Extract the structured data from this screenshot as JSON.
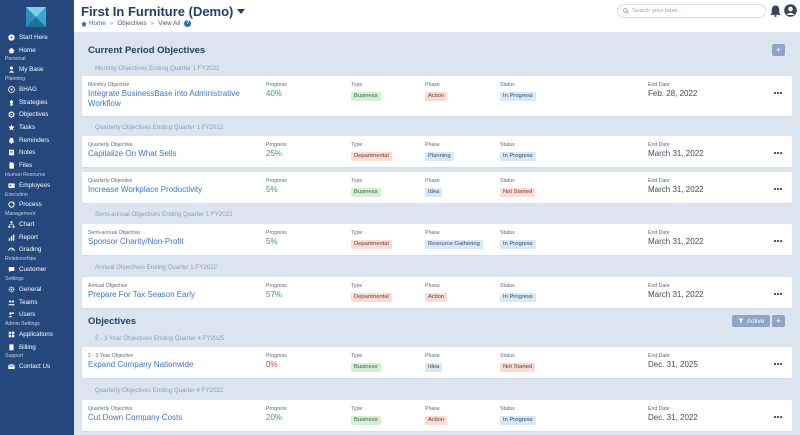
{
  "app": {
    "title": "First In Furniture (Demo)"
  },
  "breadcrumb": {
    "home": "Home",
    "objectives": "Objectives",
    "view_all": "View All",
    "help": "?"
  },
  "search": {
    "placeholder": "Search your base..."
  },
  "sidebar": {
    "start_here": "Start Here",
    "home": "Home",
    "personal": "Personal",
    "my_base": "My Base",
    "planning": "Planning",
    "bhag": "BHAG",
    "strategies": "Strategies",
    "objectives": "Objectives",
    "tasks": "Tasks",
    "reminders": "Reminders",
    "notes": "Notes",
    "files": "Files",
    "human_resource": "Human Resource",
    "employees": "Employees",
    "execution": "Execution",
    "process": "Process",
    "management": "Management",
    "chart": "Chart",
    "report": "Report",
    "grading": "Grading",
    "relationships": "Relationships",
    "customer": "Customer",
    "settings": "Settings",
    "general": "General",
    "teams": "Teams",
    "users": "Users",
    "admin_settings": "Admin Settings",
    "applications": "Applications",
    "billing": "Billing",
    "support": "Support",
    "contact_us": "Contact Us"
  },
  "labels": {
    "progress": "Progress",
    "type": "Type",
    "phase": "Phase",
    "status": "Status",
    "end_date": "End Date"
  },
  "current_period": {
    "title": "Current Period Objectives",
    "add": "+",
    "groups": [
      "Monthly Objectives Ending Quarter 1 FY2022",
      "Quarterly Objectives Ending Quarter 1 FY2022",
      "Semi-annual Objectives Ending Quarter 1 FY2022",
      "Annual Objectives Ending Quarter 1 FY2022"
    ],
    "items": [
      {
        "kind": "Monthly Objective",
        "name": "Integrate BusinessBase into Administrative Workflow",
        "progress": "40%",
        "type": "Business",
        "phase": "Action",
        "status": "In Progress",
        "end_date": "Feb. 28, 2022"
      },
      {
        "kind": "Quarterly Objective",
        "name": "Capitalize On What Sells",
        "progress": "25%",
        "type": "Departmental",
        "phase": "Planning",
        "status": "In Progress",
        "end_date": "March 31, 2022"
      },
      {
        "kind": "Quarterly Objective",
        "name": "Increase Workplace Productivity",
        "progress": "5%",
        "type": "Business",
        "phase": "Idea",
        "status": "Not Started",
        "end_date": "March 31, 2022"
      },
      {
        "kind": "Semi-annual Objective",
        "name": "Sponsor Charity/Non-Profit",
        "progress": "5%",
        "type": "Departmental",
        "phase": "Resource Gathering",
        "status": "In Progress",
        "end_date": "March 31, 2022"
      },
      {
        "kind": "Annual Objective",
        "name": "Prepare For Tax Season Early",
        "progress": "57%",
        "type": "Departmental",
        "phase": "Action",
        "status": "In Progress",
        "end_date": "March 31, 2022"
      }
    ]
  },
  "objectives": {
    "title": "Objectives",
    "filter_label": "Active",
    "add": "+",
    "groups": [
      "2 - 3 Year Objectives Ending Quarter 4 FY2025",
      "Quarterly Objectives Ending Quarter 4 FY2022"
    ],
    "items": [
      {
        "kind": "2 - 3 Year Objective",
        "name": "Expand Company Nationwide",
        "progress": "0%",
        "type": "Business",
        "phase": "Idea",
        "status": "Not Started",
        "end_date": "Dec. 31, 2025"
      },
      {
        "kind": "Quarterly Objective",
        "name": "Cut Down Company Costs",
        "progress": "20%",
        "type": "Business",
        "phase": "Action",
        "status": "In Progress",
        "end_date": "Dec. 31, 2022"
      }
    ]
  },
  "colors": {
    "sidebar": "#24477c",
    "progress_green": "#3aa35a",
    "progress_red": "#d9483b",
    "link": "#3c77c9"
  }
}
